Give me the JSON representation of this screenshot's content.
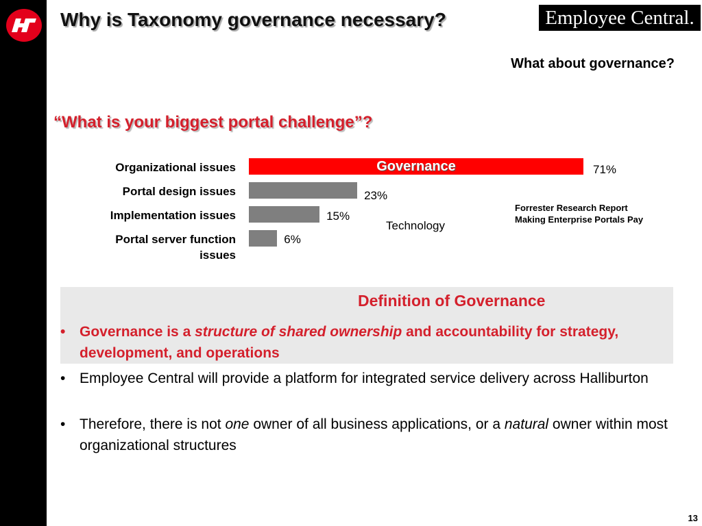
{
  "header": {
    "title": "Why is Taxonomy governance necessary?",
    "brand": "Employee Central."
  },
  "subtitle": "What about governance?",
  "question": "“What is your biggest portal challenge”?",
  "chart_data": {
    "type": "bar",
    "orientation": "horizontal",
    "categories": [
      "Organizational issues",
      "Portal design issues",
      "Implementation issues",
      "Portal server function issues"
    ],
    "values": [
      71,
      23,
      15,
      6
    ],
    "value_labels": [
      "71%",
      "23%",
      "15%",
      "6%"
    ],
    "highlight_index": 0,
    "highlight_label": "Governance",
    "annotation": "Technology",
    "colors": {
      "highlight": "#ff0000",
      "bar": "#7f7f7f"
    }
  },
  "source": {
    "line1": "Forrester Research Report",
    "line2": "Making Enterprise Portals Pay"
  },
  "definition": {
    "heading": "Definition of Governance",
    "part1": "Governance is a ",
    "emphasis": "structure of shared ownership",
    "part2": " and accountability for strategy, development, and operations"
  },
  "bullets": {
    "b1": "Employee Central will provide a platform for integrated service delivery across Halliburton",
    "b2_part1": "Therefore, there is not ",
    "b2_em1": "one",
    "b2_part2": " owner of all business applications, or a ",
    "b2_em2": "natural",
    "b2_part3": " owner within most organizational structures"
  },
  "bullet_symbol": "•",
  "page_number": "13",
  "colors": {
    "accent": "#d4202c",
    "logo": "#e3001b",
    "band": "#000000",
    "box": "#e9e9e9"
  },
  "icons": {
    "logo": "halliburton-logo-icon"
  }
}
